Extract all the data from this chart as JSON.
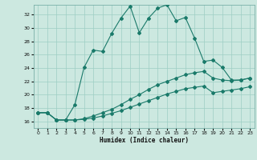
{
  "xlabel": "Humidex (Indice chaleur)",
  "bg_color": "#cce8e0",
  "grid_color": "#9ecec4",
  "line_color": "#1a7a6a",
  "xlim": [
    -0.5,
    23.5
  ],
  "ylim": [
    15.0,
    33.5
  ],
  "xticks": [
    0,
    1,
    2,
    3,
    4,
    5,
    6,
    7,
    8,
    9,
    10,
    11,
    12,
    13,
    14,
    15,
    16,
    17,
    18,
    19,
    20,
    21,
    22,
    23
  ],
  "yticks": [
    16,
    18,
    20,
    22,
    24,
    26,
    28,
    30,
    32
  ],
  "series1_x": [
    0,
    1,
    2,
    3,
    4,
    5,
    6,
    7,
    8,
    9,
    10,
    11,
    12,
    13,
    14,
    15,
    16,
    17,
    18,
    19,
    20,
    21,
    22,
    23
  ],
  "series1_y": [
    17.3,
    17.3,
    16.2,
    16.2,
    18.5,
    24.1,
    26.7,
    26.5,
    29.2,
    31.5,
    33.3,
    29.3,
    31.5,
    33.0,
    33.5,
    31.1,
    31.6,
    28.5,
    25.0,
    25.2,
    24.1,
    22.2,
    22.2,
    22.5
  ],
  "series2_x": [
    0,
    1,
    2,
    3,
    4,
    5,
    6,
    7,
    8,
    9,
    10,
    11,
    12,
    13,
    14,
    15,
    16,
    17,
    18,
    19,
    20,
    21,
    22,
    23
  ],
  "series2_y": [
    17.3,
    17.3,
    16.2,
    16.2,
    16.2,
    16.4,
    16.8,
    17.3,
    17.8,
    18.5,
    19.3,
    20.0,
    20.8,
    21.5,
    22.0,
    22.5,
    23.0,
    23.3,
    23.5,
    22.5,
    22.2,
    22.1,
    22.2,
    22.5
  ],
  "series3_x": [
    0,
    1,
    2,
    3,
    4,
    5,
    6,
    7,
    8,
    9,
    10,
    11,
    12,
    13,
    14,
    15,
    16,
    17,
    18,
    19,
    20,
    21,
    22,
    23
  ],
  "series3_y": [
    17.3,
    17.3,
    16.2,
    16.2,
    16.2,
    16.3,
    16.5,
    16.8,
    17.2,
    17.6,
    18.1,
    18.6,
    19.1,
    19.6,
    20.1,
    20.5,
    20.9,
    21.1,
    21.3,
    20.3,
    20.5,
    20.7,
    20.9,
    21.2
  ]
}
